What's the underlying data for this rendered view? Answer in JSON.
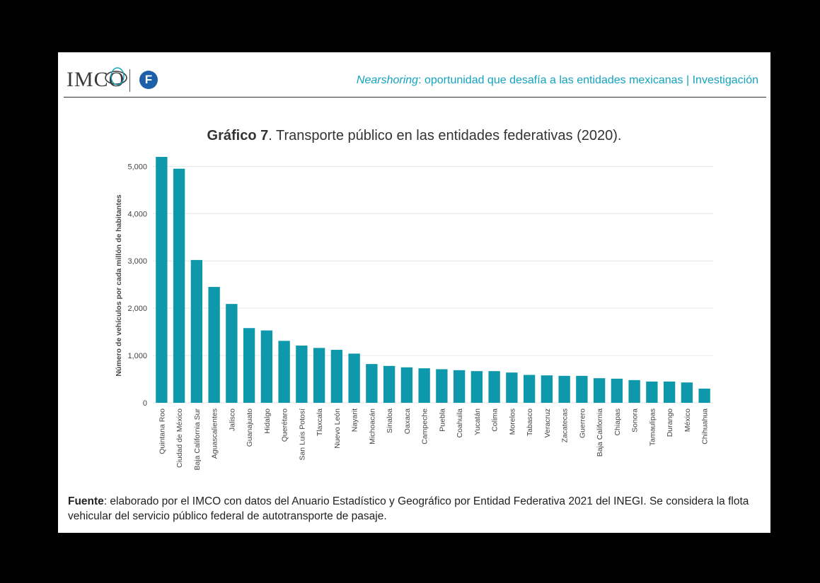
{
  "header": {
    "logo_text": "IMCO",
    "logo_badge": "F",
    "title_italic": "Nearshoring",
    "title_rest": ": oportunidad que desafía a las entidades mexicanas | Investigación"
  },
  "chart_title": {
    "label": "Gráfico 7",
    "text": ". Transporte público en las entidades federativas (2020)."
  },
  "colors": {
    "bar": "#0e98ac",
    "accent": "#14a3c0",
    "grid": "#e6e6e6"
  },
  "chart_data": {
    "type": "bar",
    "title": "Gráfico 7. Transporte público en las entidades federativas (2020).",
    "xlabel": "",
    "ylabel": "Número de vehículos por cada millón de habitantes",
    "ylim": [
      0,
      5200
    ],
    "yticks": [
      0,
      1000,
      2000,
      3000,
      4000,
      5000
    ],
    "ytick_labels": [
      "0",
      "1,000",
      "2,000",
      "3,000",
      "4,000",
      "5,000"
    ],
    "grid": true,
    "categories": [
      "Quintana Roo",
      "Ciudad de México",
      "Baja California Sur",
      "Aguascalientes",
      "Jalisco",
      "Guanajuato",
      "Hidalgo",
      "Querétaro",
      "San Luis Potosí",
      "Tlaxcala",
      "Nuevo León",
      "Nayarit",
      "Michoacán",
      "Sinaloa",
      "Oaxaca",
      "Campeche",
      "Puebla",
      "Coahuila",
      "Yucatán",
      "Colima",
      "Morelos",
      "Tabasco",
      "Veracruz",
      "Zacatecas",
      "Guerrero",
      "Baja California",
      "Chiapas",
      "Sonora",
      "Tamaulipas",
      "Durango",
      "México",
      "Chihuahua"
    ],
    "values": [
      5200,
      4950,
      3020,
      2450,
      2090,
      1580,
      1530,
      1310,
      1210,
      1160,
      1120,
      1040,
      820,
      780,
      750,
      730,
      710,
      690,
      670,
      670,
      640,
      590,
      580,
      570,
      570,
      520,
      510,
      480,
      450,
      450,
      430,
      300
    ]
  },
  "footnote": {
    "label": "Fuente",
    "text": ": elaborado por el IMCO con datos del Anuario Estadístico y Geográfico por Entidad Federativa 2021 del INEGI. Se considera la flota vehicular del servicio público federal de autotransporte de pasaje."
  }
}
